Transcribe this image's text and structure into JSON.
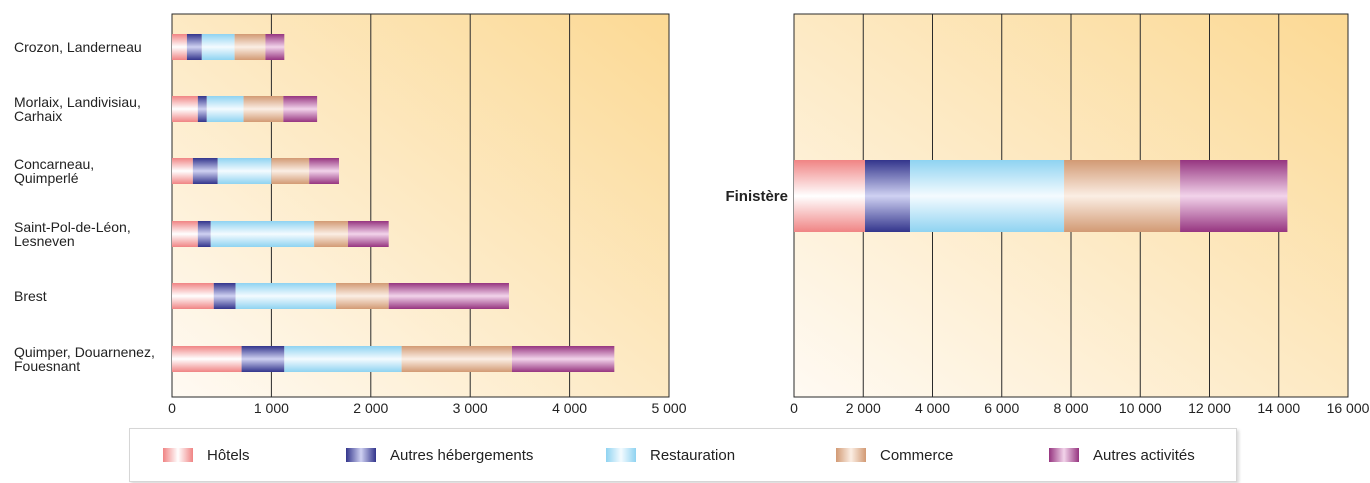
{
  "chart_data": [
    {
      "type": "bar",
      "orientation": "horizontal",
      "stacked": true,
      "categories": [
        "Crozon, Landerneau",
        "Morlaix, Landivisiau, Carhaix",
        "Concarneau, Quimperlé",
        "Saint-Pol-de-Léon, Lesneven",
        "Brest",
        "Quimper, Douarnenez, Fouesnant"
      ],
      "category_lines": [
        [
          "Crozon, Landerneau"
        ],
        [
          "Morlaix, Landivisiau,",
          "Carhaix"
        ],
        [
          "Concarneau,",
          "Quimperlé"
        ],
        [
          "Saint-Pol-de-Léon,",
          "Lesneven"
        ],
        [
          "Brest"
        ],
        [
          "Quimper, Douarnenez,",
          "Fouesnant"
        ]
      ],
      "series": [
        {
          "name": "Hôtels",
          "values": [
            150,
            260,
            210,
            260,
            420,
            700
          ]
        },
        {
          "name": "Autres hébergements",
          "values": [
            150,
            90,
            250,
            130,
            220,
            430
          ]
        },
        {
          "name": "Restauration",
          "values": [
            330,
            370,
            540,
            1040,
            1010,
            1180
          ]
        },
        {
          "name": "Commerce",
          "values": [
            310,
            400,
            380,
            340,
            530,
            1110
          ]
        },
        {
          "name": "Autres activités",
          "values": [
            190,
            340,
            300,
            410,
            1210,
            1030
          ]
        }
      ],
      "xlim": [
        0,
        5000
      ],
      "xticks": [
        "0",
        "1 000",
        "2 000",
        "3 000",
        "4 000",
        "5 000"
      ],
      "xlabel": "",
      "ylabel": "",
      "title": "",
      "grid": "vertical"
    },
    {
      "type": "bar",
      "orientation": "horizontal",
      "stacked": true,
      "categories": [
        "Finistère"
      ],
      "series": [
        {
          "name": "Hôtels",
          "values": [
            2050
          ]
        },
        {
          "name": "Autres hébergements",
          "values": [
            1300
          ]
        },
        {
          "name": "Restauration",
          "values": [
            4450
          ]
        },
        {
          "name": "Commerce",
          "values": [
            3350
          ]
        },
        {
          "name": "Autres activités",
          "values": [
            3100
          ]
        }
      ],
      "xlim": [
        0,
        16000
      ],
      "xticks": [
        "0",
        "2 000",
        "4 000",
        "6 000",
        "8 000",
        "10 000",
        "12 000",
        "14 000",
        "16 000"
      ],
      "xlabel": "",
      "ylabel": "",
      "title": "",
      "grid": "vertical"
    }
  ],
  "legend": {
    "placement": "bottom",
    "items": [
      {
        "label": "Hôtels",
        "color": "#f08c8c"
      },
      {
        "label": "Autres hébergements",
        "color": "#3a3a90"
      },
      {
        "label": "Restauration",
        "color": "#8fd6f3"
      },
      {
        "label": "Commerce",
        "color": "#d6a07c"
      },
      {
        "label": "Autres activités",
        "color": "#9c3c84"
      }
    ]
  },
  "colors": {
    "plot_bg_top": "#fde0a6",
    "plot_bg_bottom": "#fffaf2",
    "gridline": "#2a2a2a"
  }
}
